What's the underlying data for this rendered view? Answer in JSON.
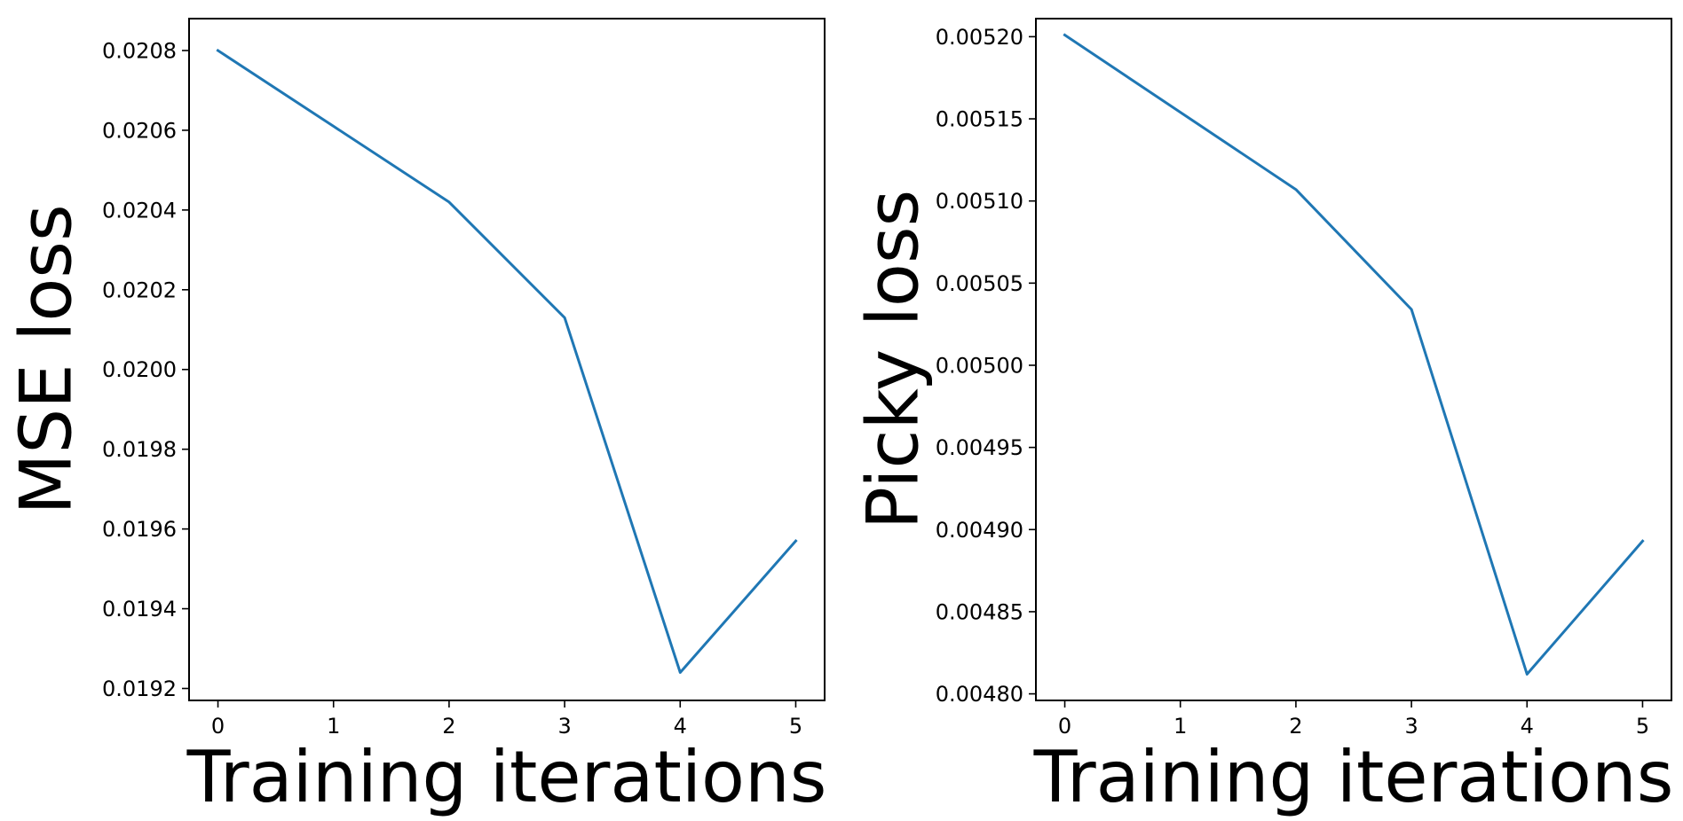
{
  "chart_data": [
    {
      "type": "line",
      "title": "",
      "xlabel": "Training iterations",
      "ylabel": "MSE loss",
      "x": [
        0,
        1,
        2,
        3,
        4,
        5
      ],
      "xticks": [
        "0",
        "1",
        "2",
        "3",
        "4",
        "5"
      ],
      "xlim": [
        -0.25,
        5.25
      ],
      "yticks": [
        "0.0192",
        "0.0194",
        "0.0196",
        "0.0198",
        "0.0200",
        "0.0202",
        "0.0204",
        "0.0206",
        "0.0208"
      ],
      "ylim": [
        0.01917,
        0.02088
      ],
      "grid": false,
      "series": [
        {
          "values": [
            0.0208,
            0.02061,
            0.02042,
            0.02013,
            0.01924,
            0.01957
          ],
          "color": "#1f77b4"
        }
      ]
    },
    {
      "type": "line",
      "title": "",
      "xlabel": "Training iterations",
      "ylabel": "Picky loss",
      "x": [
        0,
        1,
        2,
        3,
        4,
        5
      ],
      "xticks": [
        "0",
        "1",
        "2",
        "3",
        "4",
        "5"
      ],
      "xlim": [
        -0.25,
        5.25
      ],
      "yticks": [
        "0.00480",
        "0.00485",
        "0.00490",
        "0.00495",
        "0.00500",
        "0.00505",
        "0.00510",
        "0.00515",
        "0.00520"
      ],
      "ylim": [
        0.004796,
        0.005211
      ],
      "grid": false,
      "series": [
        {
          "values": [
            0.005201,
            0.005154,
            0.005107,
            0.005034,
            0.004812,
            0.004893
          ],
          "color": "#1f77b4"
        }
      ]
    }
  ]
}
